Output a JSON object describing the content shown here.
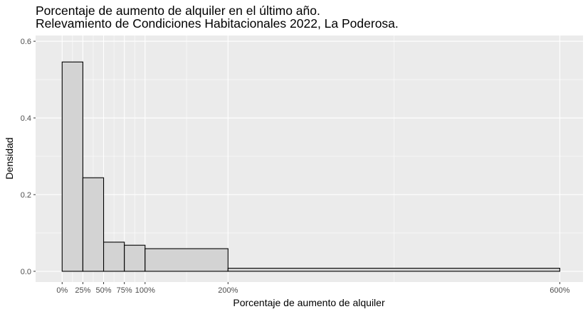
{
  "chart_data": {
    "type": "histogram",
    "title": "Porcentaje de aumento de alquiler en el último año.",
    "subtitle": "Relevamiento de Condiciones Habitacionales 2022, La Poderosa.",
    "xlabel": "Porcentaje de aumento de alquiler",
    "ylabel": "Densidad",
    "xlim": [
      -0.32,
      6.28
    ],
    "ylim": [
      -0.028,
      0.615
    ],
    "x_ticks": [
      {
        "value": 0,
        "label": "0%"
      },
      {
        "value": 0.25,
        "label": "25%"
      },
      {
        "value": 0.5,
        "label": "50%"
      },
      {
        "value": 0.75,
        "label": "75%"
      },
      {
        "value": 1,
        "label": "100%"
      },
      {
        "value": 2,
        "label": "200%"
      },
      {
        "value": 6,
        "label": "600%"
      }
    ],
    "y_ticks": [
      {
        "value": 0,
        "label": "0.0"
      },
      {
        "value": 0.2,
        "label": "0.2"
      },
      {
        "value": 0.4,
        "label": "0.4"
      },
      {
        "value": 0.6,
        "label": "0.6"
      }
    ],
    "bins": [
      {
        "x0": 0,
        "x1": 0.25,
        "density": 0.546
      },
      {
        "x0": 0.25,
        "x1": 0.5,
        "density": 0.244
      },
      {
        "x0": 0.5,
        "x1": 0.75,
        "density": 0.076
      },
      {
        "x0": 0.75,
        "x1": 1,
        "density": 0.068
      },
      {
        "x0": 1,
        "x1": 2,
        "density": 0.059
      },
      {
        "x0": 2,
        "x1": 6,
        "density": 0.008
      }
    ],
    "colors": {
      "panel": "#ebebeb",
      "grid": "#ffffff",
      "bar_fill": "#d3d3d3",
      "bar_stroke": "#000000"
    },
    "grid": true,
    "legend": "none"
  }
}
